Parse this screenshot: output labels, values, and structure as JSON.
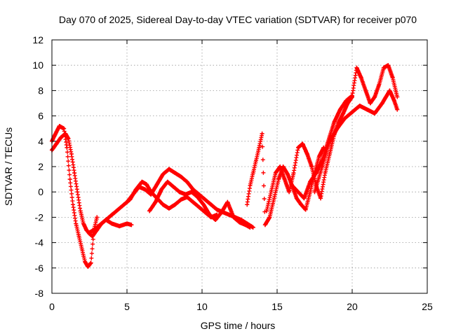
{
  "chart_data": {
    "type": "scatter",
    "title": "Day 070 of 2025, Sidereal Day-to-day VTEC variation (SDTVAR) for receiver p070",
    "xlabel": "GPS time / hours",
    "ylabel": "SDTVAR / TECUs",
    "xlim": [
      0,
      25
    ],
    "ylim": [
      -8,
      12
    ],
    "xticks": [
      "0",
      "5",
      "10",
      "15",
      "20",
      "25"
    ],
    "yticks": [
      "-8",
      "-6",
      "-4",
      "-2",
      "0",
      "2",
      "4",
      "6",
      "8",
      "10",
      "12"
    ],
    "grid": true,
    "legend": "none",
    "marker": "plus",
    "color": "#ff0000",
    "series": [
      {
        "x": [
          0.0,
          0.2,
          0.5,
          0.8,
          1.0,
          1.2,
          1.4,
          1.6,
          1.8,
          2.0,
          2.2,
          2.4,
          2.6,
          2.8,
          3.0
        ],
        "y": [
          4.0,
          4.5,
          5.2,
          5.0,
          3.5,
          1.0,
          -1.0,
          -2.5,
          -3.5,
          -4.5,
          -5.5,
          -5.9,
          -5.6,
          -3.0,
          -2.0
        ]
      },
      {
        "x": [
          0.0,
          0.3,
          0.6,
          0.9,
          1.1,
          1.3,
          1.5,
          1.7,
          1.9,
          2.1,
          2.3,
          2.5,
          2.7,
          3.0,
          3.3,
          3.6,
          4.0,
          4.5,
          5.0,
          5.3
        ],
        "y": [
          3.3,
          3.8,
          4.3,
          4.6,
          4.2,
          3.0,
          1.5,
          0.0,
          -1.5,
          -2.5,
          -3.0,
          -3.3,
          -3.5,
          -3.0,
          -2.5,
          -2.2,
          -2.5,
          -2.7,
          -2.5,
          -2.6
        ]
      },
      {
        "x": [
          2.5,
          2.8,
          3.2,
          3.6,
          4.0,
          4.4,
          4.8,
          5.2,
          5.6,
          6.0,
          6.3,
          6.6,
          7.0,
          7.4,
          7.8,
          8.2,
          8.6,
          9.0,
          9.4,
          9.8,
          10.2,
          10.6,
          11.0
        ],
        "y": [
          -3.2,
          -3.0,
          -2.6,
          -2.2,
          -1.8,
          -1.4,
          -1.0,
          -0.6,
          0.2,
          0.8,
          0.6,
          0.0,
          -0.5,
          -1.0,
          -1.3,
          -1.0,
          -0.6,
          -0.4,
          -0.8,
          -1.2,
          -1.6,
          -2.0,
          -1.8
        ]
      },
      {
        "x": [
          5.0,
          5.4,
          5.8,
          6.2,
          6.6,
          7.0,
          7.4,
          7.8,
          8.2,
          8.6,
          9.0,
          9.4,
          9.8,
          10.2,
          10.6,
          11.0,
          11.4,
          11.8,
          12.2,
          12.6,
          13.0,
          13.4
        ],
        "y": [
          -0.8,
          -0.2,
          0.4,
          0.2,
          -0.2,
          0.6,
          1.4,
          1.8,
          1.5,
          1.2,
          0.8,
          0.2,
          -0.2,
          -0.6,
          -1.0,
          -1.4,
          -1.6,
          -1.8,
          -2.0,
          -2.2,
          -2.5,
          -2.8
        ]
      },
      {
        "x": [
          6.5,
          6.9,
          7.3,
          7.7,
          8.1,
          8.5,
          8.9,
          9.3,
          9.7,
          10.1,
          10.5,
          10.9,
          11.3,
          11.7,
          12.1,
          12.5,
          12.9,
          13.2
        ],
        "y": [
          -1.5,
          -0.8,
          0.2,
          0.8,
          0.4,
          0.0,
          -0.2,
          0.0,
          -0.4,
          -1.0,
          -1.8,
          -2.2,
          -1.6,
          -0.8,
          -2.0,
          -2.4,
          -2.6,
          -2.8
        ]
      },
      {
        "x": [
          13.0,
          13.2,
          13.4,
          13.6,
          13.8,
          14.0,
          14.2,
          14.5,
          14.8,
          15.1,
          15.4,
          15.7,
          16.0,
          16.3,
          16.6,
          16.9,
          17.2,
          17.5,
          17.8,
          18.1
        ],
        "y": [
          -1.0,
          0.5,
          1.5,
          2.5,
          3.5,
          4.6,
          -2.6,
          -2.0,
          -0.5,
          1.0,
          2.0,
          1.4,
          0.5,
          -0.5,
          -1.0,
          -1.4,
          0.0,
          1.5,
          2.8,
          3.5
        ]
      },
      {
        "x": [
          14.3,
          14.6,
          14.9,
          15.2,
          15.5,
          15.8,
          16.1,
          16.4,
          16.7,
          17.0,
          17.3,
          17.6,
          17.9,
          18.2,
          18.5,
          18.8,
          19.1,
          19.4,
          19.7,
          20.0
        ],
        "y": [
          -1.5,
          0.0,
          1.5,
          2.0,
          1.0,
          0.0,
          1.5,
          3.5,
          3.8,
          3.0,
          2.0,
          0.5,
          -0.5,
          1.5,
          3.0,
          4.5,
          5.5,
          6.2,
          7.0,
          7.5
        ]
      },
      {
        "x": [
          16.0,
          16.4,
          16.8,
          17.2,
          17.6,
          18.0,
          18.4,
          18.8,
          19.2,
          19.6,
          20.0,
          20.3,
          20.6,
          20.9,
          21.2,
          21.5,
          21.8,
          22.1,
          22.4,
          22.7,
          23.0
        ],
        "y": [
          0.5,
          0.0,
          -0.5,
          0.8,
          1.5,
          2.5,
          4.0,
          5.5,
          6.5,
          7.2,
          7.6,
          9.8,
          9.0,
          8.0,
          7.0,
          7.5,
          8.5,
          9.8,
          10.0,
          9.0,
          7.5
        ]
      },
      {
        "x": [
          17.5,
          18.0,
          18.5,
          19.0,
          19.5,
          20.0,
          20.5,
          21.0,
          21.5,
          22.0,
          22.5,
          22.8,
          23.0
        ],
        "y": [
          0.0,
          2.0,
          4.0,
          5.0,
          5.8,
          6.3,
          6.8,
          6.5,
          6.2,
          7.0,
          8.0,
          7.2,
          6.5
        ]
      }
    ]
  }
}
